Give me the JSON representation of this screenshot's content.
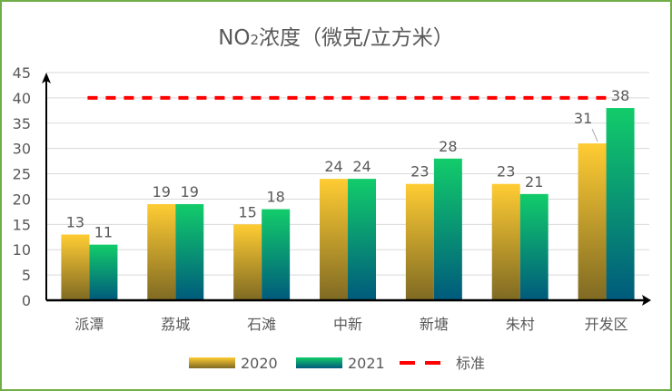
{
  "chart_data": {
    "type": "bar",
    "title": "NO2浓度（微克/立方米）",
    "title_parts": {
      "main": "NO",
      "sub": "2",
      "rest": "浓度（微克/立方米）"
    },
    "categories": [
      "派潭",
      "荔城",
      "石滩",
      "中新",
      "新塘",
      "朱村",
      "开发区"
    ],
    "series": [
      {
        "name": "2020",
        "values": [
          13,
          19,
          15,
          24,
          23,
          23,
          31
        ],
        "gradient": [
          "#ffcc33",
          "#7f6a23"
        ]
      },
      {
        "name": "2021",
        "values": [
          11,
          19,
          18,
          24,
          28,
          21,
          38
        ],
        "gradient": [
          "#12cc6a",
          "#005a7c"
        ]
      }
    ],
    "reference_line": {
      "name": "标准",
      "value": 40,
      "color": "#ff0000",
      "style": "dashed"
    },
    "ylim": [
      0,
      45
    ],
    "yticks": [
      0,
      5,
      10,
      15,
      20,
      25,
      30,
      35,
      40,
      45
    ],
    "grid": true,
    "legend": "bottom",
    "frame_color": "#70ad47"
  }
}
